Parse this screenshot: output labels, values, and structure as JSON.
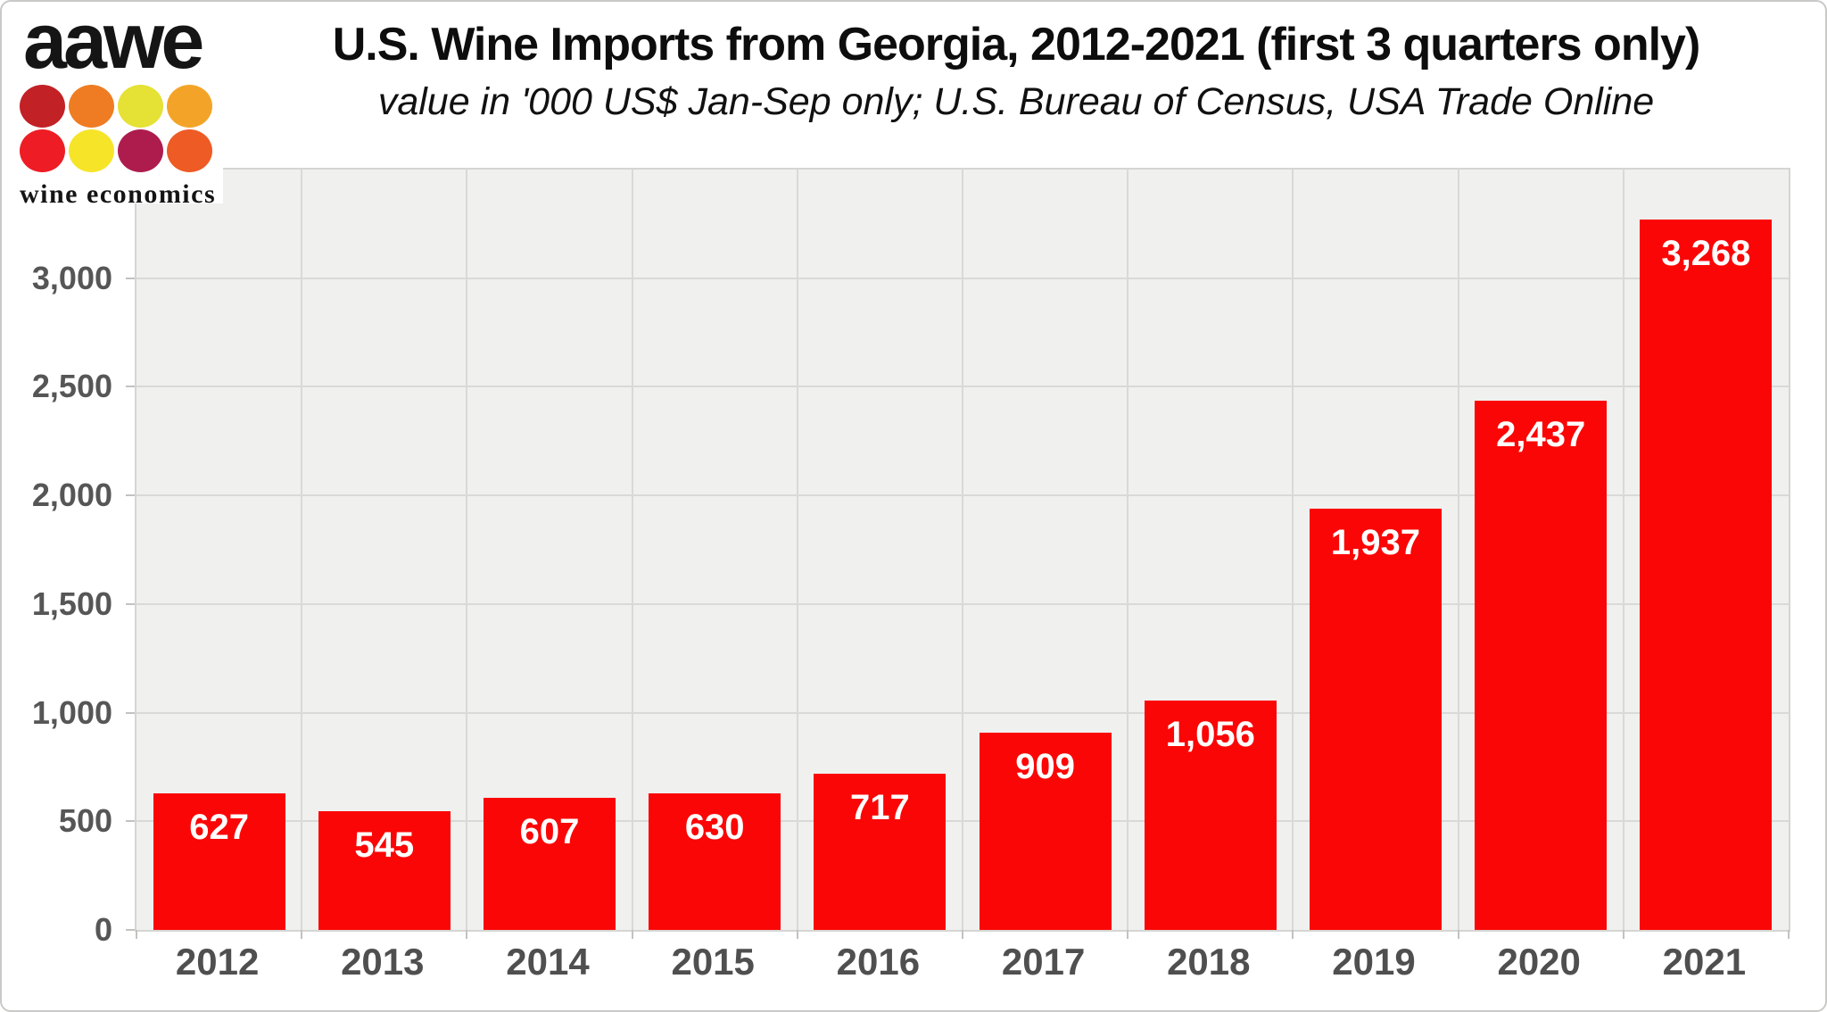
{
  "logo": {
    "brand": "aawe",
    "tagline": "wine economics",
    "dot_colors": [
      "#c22126",
      "#ef7c22",
      "#e5e135",
      "#f3a428",
      "#ee1c24",
      "#f6e428",
      "#ae1c4e",
      "#ee5b24"
    ]
  },
  "header": {
    "title": "U.S. Wine Imports from Georgia, 2012-2021 (first 3 quarters only)",
    "subtitle": "value in '000 US$ Jan-Sep only; U.S. Bureau of Census, USA Trade Online"
  },
  "chart_data": {
    "type": "bar",
    "title": "U.S. Wine Imports from Georgia, 2012-2021 (first 3 quarters only)",
    "subtitle": "value in '000 US$ Jan-Sep only; U.S. Bureau of Census, USA Trade Online",
    "categories": [
      "2012",
      "2013",
      "2014",
      "2015",
      "2016",
      "2017",
      "2018",
      "2019",
      "2020",
      "2021"
    ],
    "values": [
      627,
      545,
      607,
      630,
      717,
      909,
      1056,
      1937,
      2437,
      3268
    ],
    "value_labels": [
      "627",
      "545",
      "607",
      "630",
      "717",
      "909",
      "1,056",
      "1,937",
      "2,437",
      "3,268"
    ],
    "xlabel": "",
    "ylabel": "",
    "ylim": [
      0,
      3500
    ],
    "yticks": [
      0,
      500,
      1000,
      1500,
      2000,
      2500,
      3000
    ],
    "ytick_labels": [
      "0",
      "500",
      "1,000",
      "1,500",
      "2,000",
      "2,500",
      "3,000"
    ],
    "grid": "both",
    "legend": "none",
    "bar_color": "#fb0606",
    "plot_bg": "#f0f0ef",
    "gridline_color": "#d9d9d8",
    "bar_label_color": "#ffffff",
    "axis_text_color": "#565656"
  }
}
